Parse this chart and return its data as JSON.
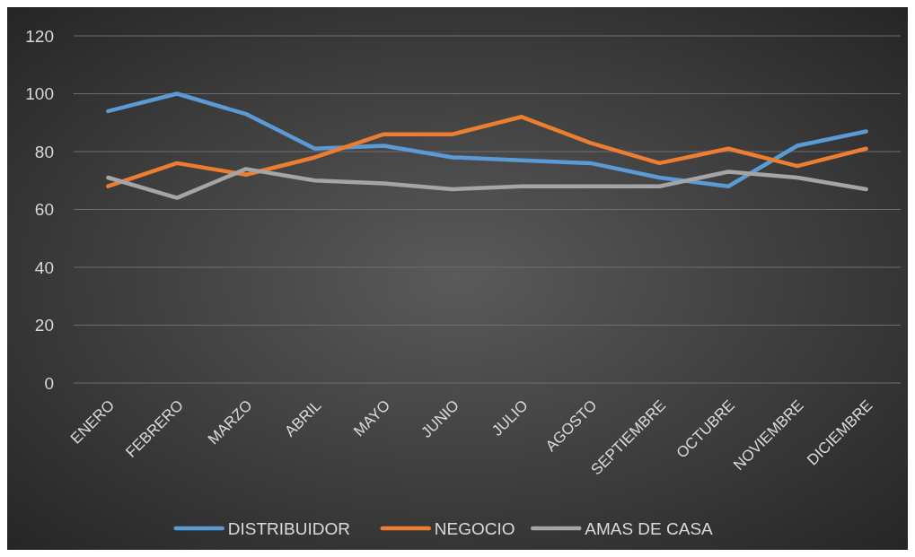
{
  "chart_data": {
    "type": "line",
    "categories": [
      "ENERO",
      "FEBRERO",
      "MARZO",
      "ABRIL",
      "MAYO",
      "JUNIO",
      "JULIO",
      "AGOSTO",
      "SEPTIEMBRE",
      "OCTUBRE",
      "NOVIEMBRE",
      "DICIEMBRE"
    ],
    "series": [
      {
        "name": "DISTRIBUIDOR",
        "color": "#5b9bd5",
        "values": [
          94,
          100,
          93,
          81,
          82,
          78,
          77,
          76,
          71,
          68,
          82,
          87
        ]
      },
      {
        "name": "NEGOCIO",
        "color": "#ed7d31",
        "values": [
          68,
          76,
          72,
          78,
          86,
          86,
          92,
          83,
          76,
          81,
          75,
          81
        ]
      },
      {
        "name": "AMAS DE CASA",
        "color": "#a5a5a5",
        "values": [
          71,
          64,
          74,
          70,
          69,
          67,
          68,
          68,
          68,
          73,
          71,
          67
        ]
      }
    ],
    "ylim": [
      0,
      120
    ],
    "yticks": [
      0,
      20,
      40,
      60,
      80,
      100,
      120
    ],
    "grid": "y",
    "legend": "bottom",
    "marker": "none",
    "line_style": "solid"
  }
}
